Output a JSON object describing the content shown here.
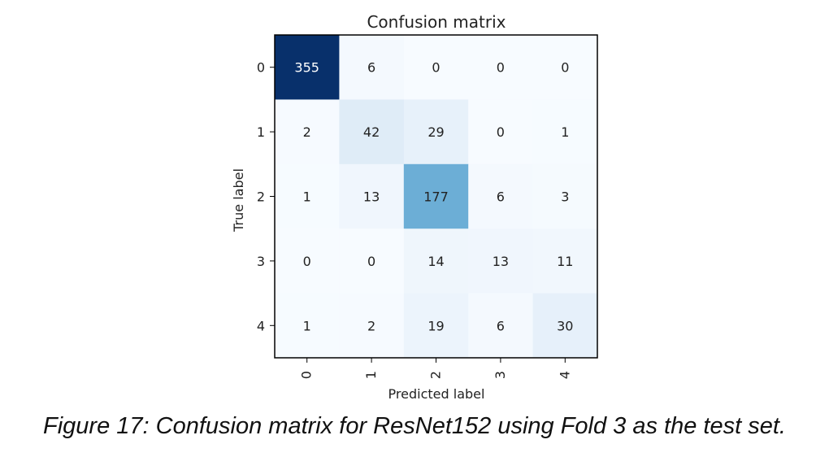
{
  "chart_data": {
    "type": "heatmap",
    "title": "Confusion matrix",
    "xlabel": "Predicted label",
    "ylabel": "True label",
    "x_tick_labels": [
      "0",
      "1",
      "2",
      "3",
      "4"
    ],
    "y_tick_labels": [
      "0",
      "1",
      "2",
      "3",
      "4"
    ],
    "matrix": [
      [
        355,
        6,
        0,
        0,
        0
      ],
      [
        2,
        42,
        29,
        0,
        1
      ],
      [
        1,
        13,
        177,
        6,
        3
      ],
      [
        0,
        0,
        14,
        13,
        11
      ],
      [
        1,
        2,
        19,
        6,
        30
      ]
    ],
    "colormap": "Blues",
    "color_low": "#f7fbff",
    "color_high": "#08306b",
    "grid": false,
    "colorbar": false
  },
  "caption": "Figure 17: Confusion matrix for ResNet152 using Fold 3 as the test set."
}
